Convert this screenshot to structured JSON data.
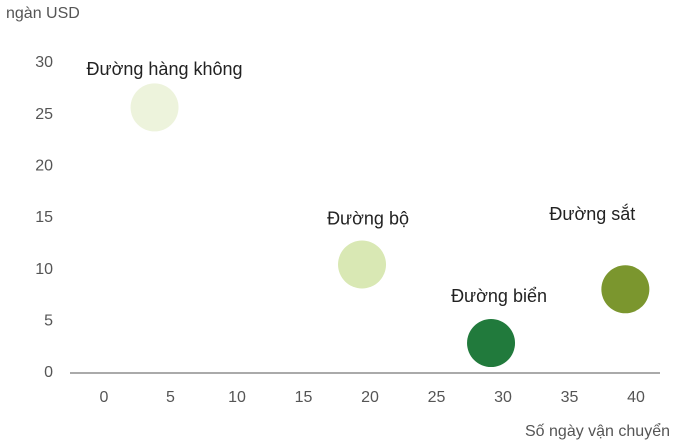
{
  "chart_data": {
    "type": "scatter",
    "y_label": "ngàn USD",
    "x_label": "Số ngày vận chuyển",
    "points": [
      {
        "name": "Đường hàng không",
        "color": "#edf3dc",
        "x": 3.8,
        "y": 25.7
      },
      {
        "name": "Đường bộ",
        "color": "#d9e8b4",
        "x": 19.4,
        "y": 10.5
      },
      {
        "name": "Đường biển",
        "color": "#217a3c",
        "x": 29.1,
        "y": 2.9
      },
      {
        "name": "Đường sắt",
        "color": "#7b962e",
        "x": 39.2,
        "y": 8.1
      }
    ],
    "xlim": [
      0,
      40
    ],
    "xticks": [
      0,
      5,
      10,
      15,
      20,
      25,
      30,
      35,
      40
    ],
    "ylim": [
      0,
      30
    ],
    "yticks": [
      0,
      5,
      10,
      15,
      20,
      25,
      30
    ],
    "grid": false
  }
}
